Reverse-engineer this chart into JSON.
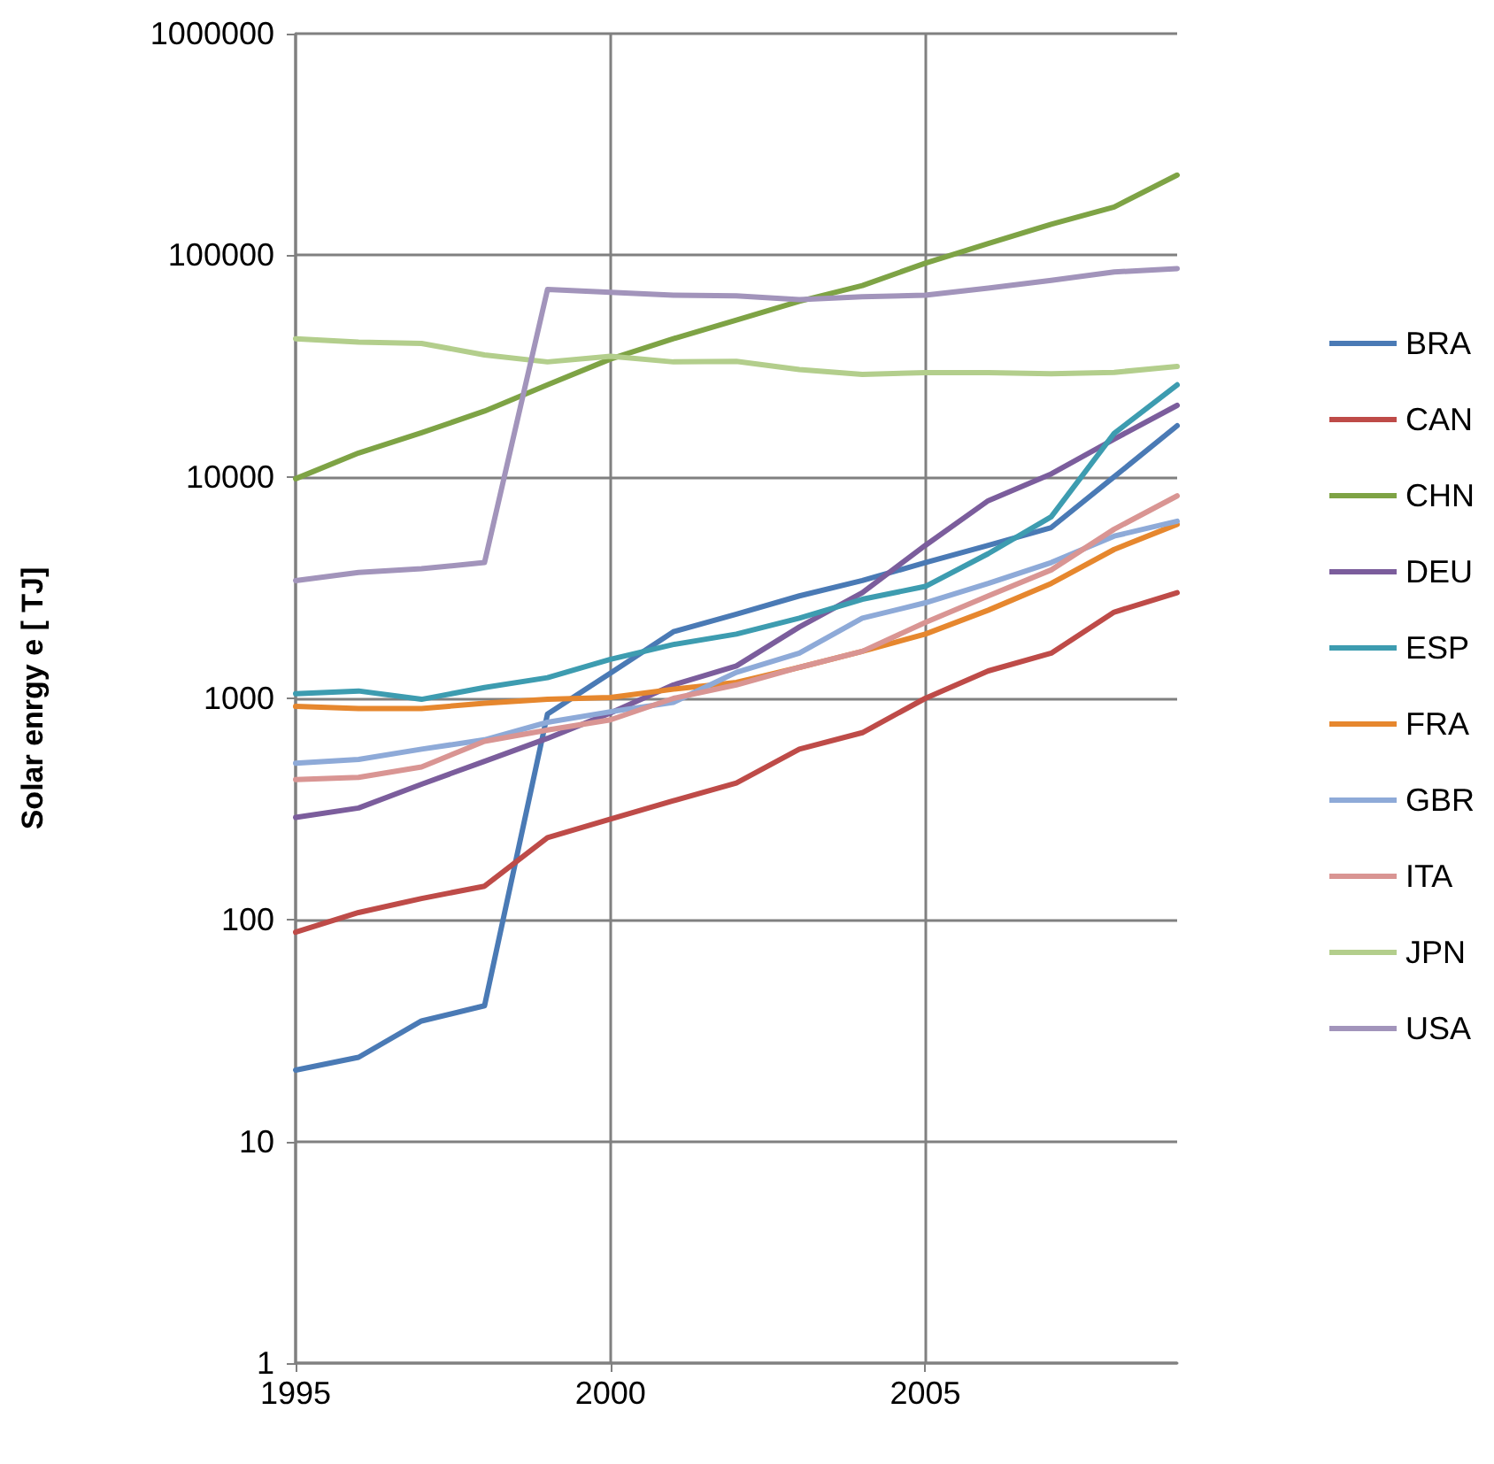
{
  "chart_data": {
    "type": "line",
    "ylabel": "Solar enrgy e [ TJ]",
    "log": true,
    "grid": true,
    "legend": "right",
    "marker": "none",
    "line_style": "solid",
    "x": [
      1995,
      1996,
      1997,
      1998,
      1999,
      2000,
      2001,
      2002,
      2003,
      2004,
      2005,
      2006,
      2007,
      2008,
      2009
    ],
    "xlim": [
      1995,
      2009
    ],
    "xticks": [
      1995,
      2000,
      2005
    ],
    "ylim": [
      1,
      1000000
    ],
    "yticks": [
      1,
      10,
      100,
      1000,
      10000,
      100000,
      1000000
    ],
    "series": [
      {
        "name": "BRA",
        "color": "#4a7ab5",
        "values": [
          21,
          24,
          35,
          41,
          850,
          1300,
          2000,
          2400,
          2900,
          3400,
          4100,
          4900,
          5900,
          10000,
          17000
        ]
      },
      {
        "name": "CAN",
        "color": "#be4b48",
        "values": [
          88,
          108,
          125,
          142,
          235,
          285,
          345,
          415,
          590,
          700,
          1000,
          1330,
          1600,
          2450,
          3000
        ]
      },
      {
        "name": "CHN",
        "color": "#7ea345",
        "values": [
          9800,
          12800,
          15800,
          19800,
          26000,
          34000,
          42000,
          51000,
          62000,
          73000,
          92000,
          113000,
          138000,
          165000,
          230000
        ]
      },
      {
        "name": "DEU",
        "color": "#7b5d9c",
        "values": [
          290,
          320,
          410,
          520,
          660,
          860,
          1150,
          1400,
          2100,
          3000,
          4900,
          7800,
          10300,
          14800,
          21000
        ]
      },
      {
        "name": "ESP",
        "color": "#3d9cb0",
        "values": [
          1050,
          1080,
          990,
          1120,
          1240,
          1500,
          1750,
          1950,
          2300,
          2800,
          3200,
          4500,
          6600,
          15700,
          26000
        ]
      },
      {
        "name": "FRA",
        "color": "#e6872e",
        "values": [
          920,
          900,
          900,
          950,
          990,
          1010,
          1100,
          1180,
          1380,
          1630,
          1950,
          2500,
          3300,
          4700,
          6100
        ]
      },
      {
        "name": "GBR",
        "color": "#8eaad8",
        "values": [
          510,
          530,
          590,
          650,
          780,
          870,
          960,
          1310,
          1600,
          2300,
          2700,
          3300,
          4100,
          5400,
          6300
        ]
      },
      {
        "name": "ITA",
        "color": "#d99593",
        "values": [
          430,
          440,
          490,
          640,
          720,
          800,
          1000,
          1150,
          1380,
          1630,
          2200,
          2900,
          3800,
          5800,
          8200
        ]
      },
      {
        "name": "JPN",
        "color": "#b3ce8c",
        "values": [
          42000,
          40500,
          40000,
          35500,
          33000,
          35000,
          33000,
          33200,
          30500,
          29000,
          29500,
          29500,
          29200,
          29600,
          31500
        ]
      },
      {
        "name": "USA",
        "color": "#a294bb",
        "values": [
          3400,
          3700,
          3850,
          4100,
          70000,
          68000,
          66000,
          65500,
          63000,
          65000,
          66000,
          71000,
          77000,
          84000,
          87000
        ]
      }
    ]
  }
}
